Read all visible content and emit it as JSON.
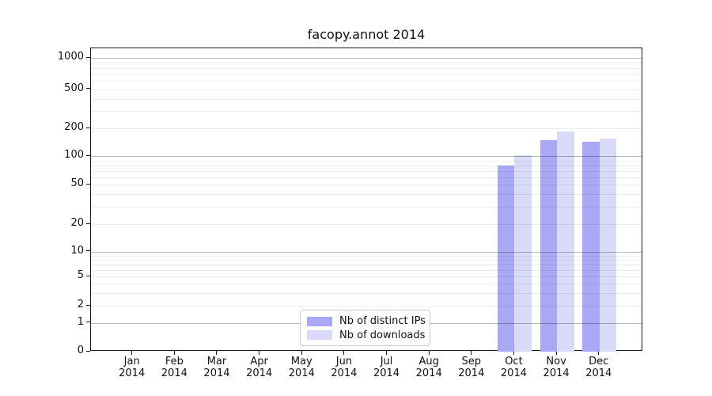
{
  "chart_data": {
    "type": "bar",
    "title": "facopy.annot 2014",
    "yscale": "symlog (linear 0-1, logarithmic above 1)",
    "ylim": [
      0,
      1000
    ],
    "yticks": [
      0,
      1,
      2,
      5,
      10,
      20,
      50,
      100,
      200,
      500,
      1000
    ],
    "grid": "major gray lines at powers of 10, faint minor log lines, drawn over bars",
    "legend_position": "lower center",
    "xlabel": "",
    "ylabel": "",
    "categories": [
      {
        "month": "Jan",
        "year": "2014"
      },
      {
        "month": "Feb",
        "year": "2014"
      },
      {
        "month": "Mar",
        "year": "2014"
      },
      {
        "month": "Apr",
        "year": "2014"
      },
      {
        "month": "May",
        "year": "2014"
      },
      {
        "month": "Jun",
        "year": "2014"
      },
      {
        "month": "Jul",
        "year": "2014"
      },
      {
        "month": "Aug",
        "year": "2014"
      },
      {
        "month": "Sep",
        "year": "2014"
      },
      {
        "month": "Oct",
        "year": "2014"
      },
      {
        "month": "Nov",
        "year": "2014"
      },
      {
        "month": "Dec",
        "year": "2014"
      }
    ],
    "series": [
      {
        "name": "Nb of distinct IPs",
        "color": "#a8a8f5",
        "values": [
          0,
          0,
          0,
          0,
          0,
          0,
          0,
          0,
          0,
          80,
          150,
          143
        ]
      },
      {
        "name": "Nb of downloads",
        "color": "#d9d9f8",
        "values": [
          0,
          0,
          0,
          0,
          0,
          0,
          0,
          0,
          0,
          101,
          185,
          156
        ]
      }
    ]
  }
}
